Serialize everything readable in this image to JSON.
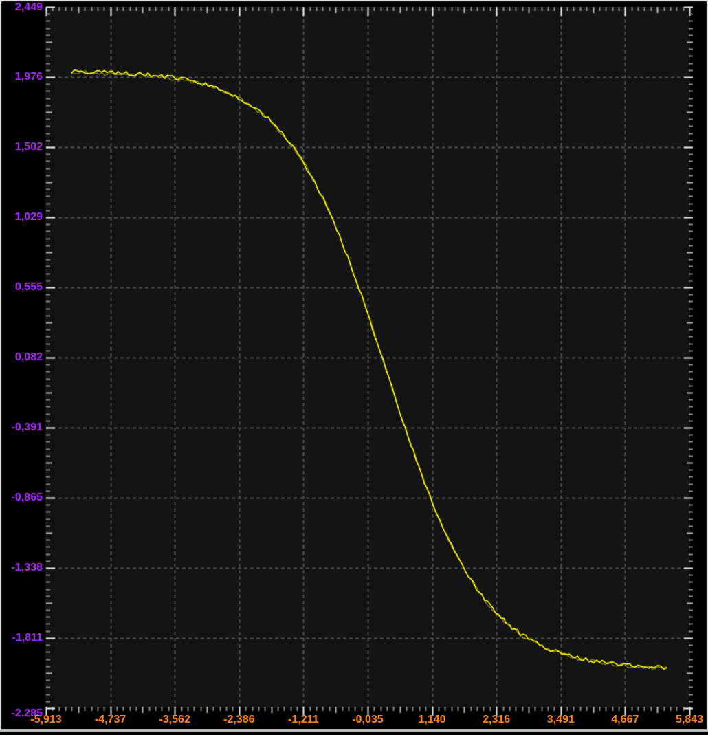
{
  "window": {
    "frame_color": "#dfe0e0",
    "bottom_strip_color": "#c2c6c6",
    "background": "#000000"
  },
  "chart_data": {
    "type": "line",
    "title": "",
    "description": "Noisy yellow descending S-curve (sigmoid transfer curve) on dark oscilloscope-style grid",
    "x_axis": {
      "min": -5.913,
      "max": 5.843,
      "ticks": [
        -5.913,
        -4.737,
        -3.562,
        -2.386,
        -1.211,
        -0.035,
        1.14,
        2.316,
        3.491,
        4.667,
        5.843
      ],
      "tick_labels": [
        "-5,913",
        "-4,737",
        "-3,562",
        "-2,386",
        "-1,211",
        "-0,035",
        "1,140",
        "2,316",
        "3,491",
        "4,667",
        "5,843"
      ],
      "label_color": "#f28318",
      "minor_divisions": 10
    },
    "y_axis": {
      "min": -2.285,
      "max": 2.449,
      "ticks": [
        2.449,
        1.976,
        1.502,
        1.029,
        0.555,
        0.082,
        -0.391,
        -0.865,
        -1.338,
        -1.811,
        -2.285
      ],
      "tick_labels": [
        "2,449",
        "1,976",
        "1,502",
        "1,029",
        "0,555",
        "0,082",
        "-0,391",
        "-0,865",
        "-1,338",
        "-1,811",
        "-2.285"
      ],
      "label_color": "#8d2ee8",
      "minor_divisions": 10
    },
    "grid": {
      "show": true,
      "color": "#4f4f4f",
      "dash": [
        5,
        4
      ]
    },
    "plot_bg": "#141414",
    "tick_colors": {
      "minor": "#8a8a8a",
      "mid": "#b8b8b8",
      "major": "#ececec"
    },
    "legend": {
      "show": false
    },
    "series": [
      {
        "name": "trace",
        "color": "#ffff00",
        "noise_amplitude": 0.014,
        "points": [
          [
            -5.45,
            2.013
          ],
          [
            -5.2,
            2.012
          ],
          [
            -5.0,
            2.01
          ],
          [
            -4.8,
            2.007
          ],
          [
            -4.6,
            2.004
          ],
          [
            -4.4,
            2.0
          ],
          [
            -4.2,
            1.995
          ],
          [
            -4.0,
            1.989
          ],
          [
            -3.8,
            1.981
          ],
          [
            -3.6,
            1.971
          ],
          [
            -3.4,
            1.959
          ],
          [
            -3.2,
            1.943
          ],
          [
            -3.0,
            1.925
          ],
          [
            -2.8,
            1.901
          ],
          [
            -2.6,
            1.873
          ],
          [
            -2.4,
            1.838
          ],
          [
            -2.2,
            1.793
          ],
          [
            -2.0,
            1.741
          ],
          [
            -1.8,
            1.677
          ],
          [
            -1.6,
            1.596
          ],
          [
            -1.4,
            1.503
          ],
          [
            -1.2,
            1.392
          ],
          [
            -1.0,
            1.264
          ],
          [
            -0.8,
            1.115
          ],
          [
            -0.6,
            0.946
          ],
          [
            -0.4,
            0.759
          ],
          [
            -0.2,
            0.555
          ],
          [
            0.0,
            0.339
          ],
          [
            0.2,
            0.114
          ],
          [
            0.4,
            -0.114
          ],
          [
            0.6,
            -0.339
          ],
          [
            0.8,
            -0.555
          ],
          [
            1.0,
            -0.759
          ],
          [
            1.2,
            -0.946
          ],
          [
            1.4,
            -1.115
          ],
          [
            1.6,
            -1.264
          ],
          [
            1.8,
            -1.392
          ],
          [
            2.0,
            -1.503
          ],
          [
            2.2,
            -1.596
          ],
          [
            2.4,
            -1.677
          ],
          [
            2.6,
            -1.741
          ],
          [
            2.8,
            -1.793
          ],
          [
            3.0,
            -1.838
          ],
          [
            3.2,
            -1.873
          ],
          [
            3.4,
            -1.901
          ],
          [
            3.6,
            -1.925
          ],
          [
            3.8,
            -1.943
          ],
          [
            4.0,
            -1.959
          ],
          [
            4.2,
            -1.971
          ],
          [
            4.4,
            -1.981
          ],
          [
            4.6,
            -1.989
          ],
          [
            4.8,
            -1.995
          ],
          [
            5.0,
            -2.0
          ],
          [
            5.2,
            -2.004
          ],
          [
            5.43,
            -2.008
          ]
        ]
      }
    ]
  }
}
